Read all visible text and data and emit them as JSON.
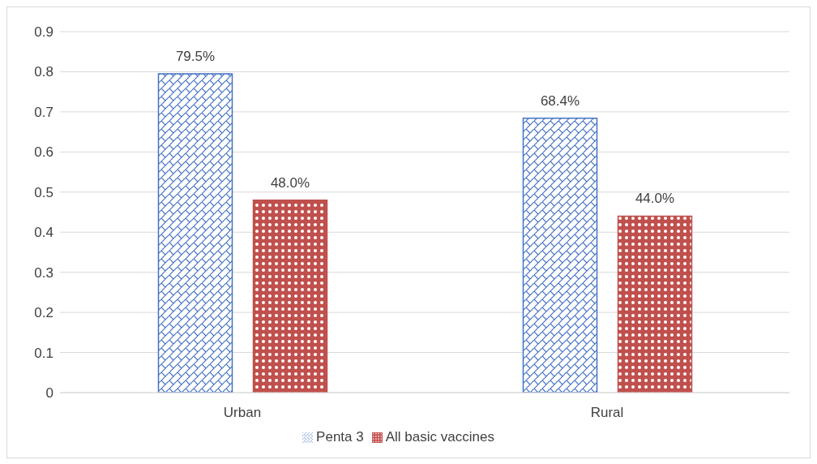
{
  "chart_data": {
    "type": "bar",
    "categories": [
      "Urban",
      "Rural"
    ],
    "series": [
      {
        "name": "Penta 3",
        "color": "#4472c4",
        "values": [
          0.795,
          0.684
        ],
        "value_labels": [
          "79.5%",
          "68.4%"
        ]
      },
      {
        "name": "All basic vaccines",
        "color": "#c0504d",
        "values": [
          0.48,
          0.44
        ],
        "value_labels": [
          "48.0%",
          "44.0%"
        ]
      }
    ],
    "ylim": [
      0,
      0.9
    ],
    "yticks": [
      0,
      0.1,
      0.2,
      0.3,
      0.4,
      0.5,
      0.6,
      0.7,
      0.8,
      0.9
    ],
    "grid": "y",
    "legend": "bottom"
  }
}
